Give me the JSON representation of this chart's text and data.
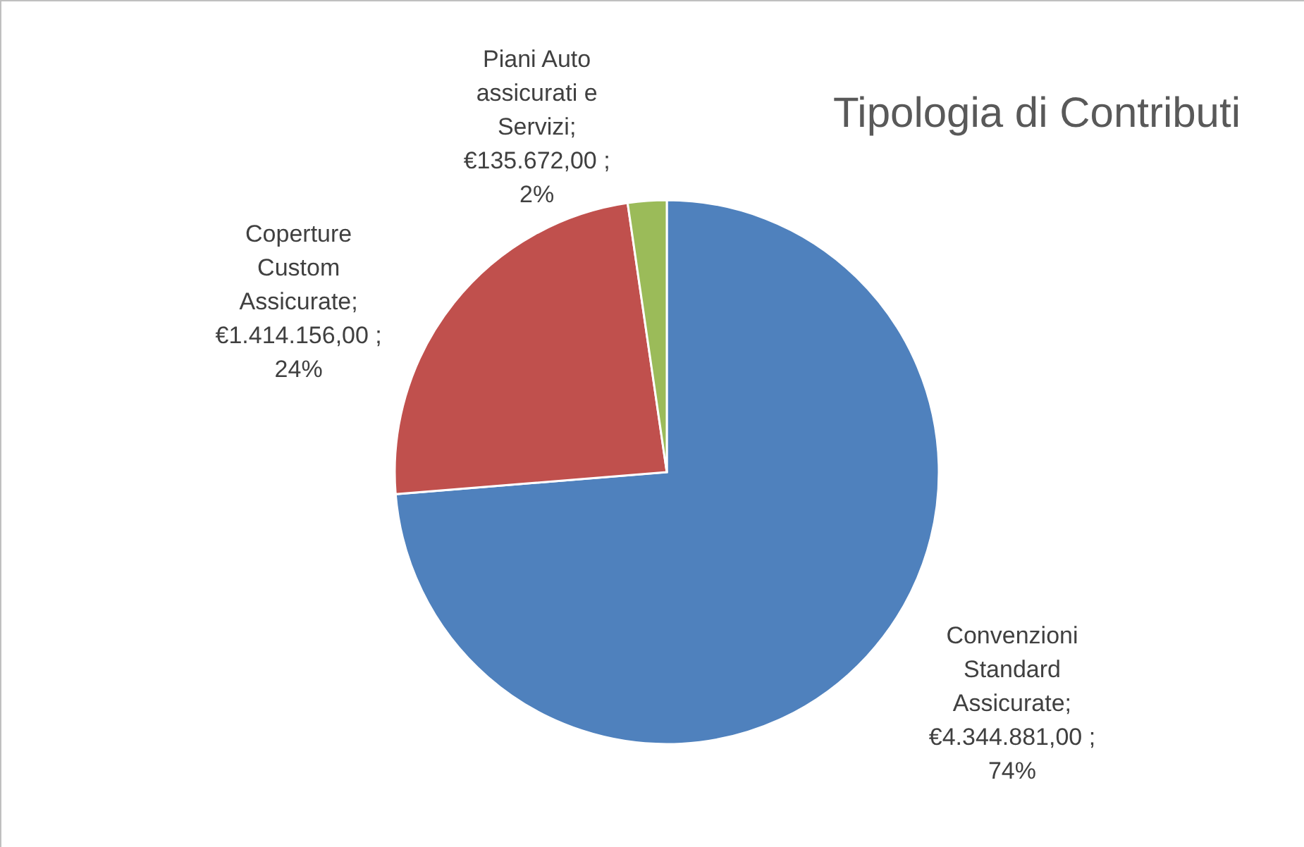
{
  "chart_data": {
    "type": "pie",
    "title": "Tipologia di Contributi",
    "categories": [
      "Convenzioni Standard Assicurate",
      "Coperture Custom Assicurate",
      "Piani Auto assicurati e Servizi"
    ],
    "values": [
      4344881,
      1414156,
      135672
    ],
    "colors": [
      "#4f81bd",
      "#c0504d",
      "#9bbb59"
    ],
    "value_labels": [
      "; €4.344.881,00 ; 74%",
      "; €1.414.156,00 ; 24%",
      "; €135.672,00 ; 2%"
    ]
  }
}
